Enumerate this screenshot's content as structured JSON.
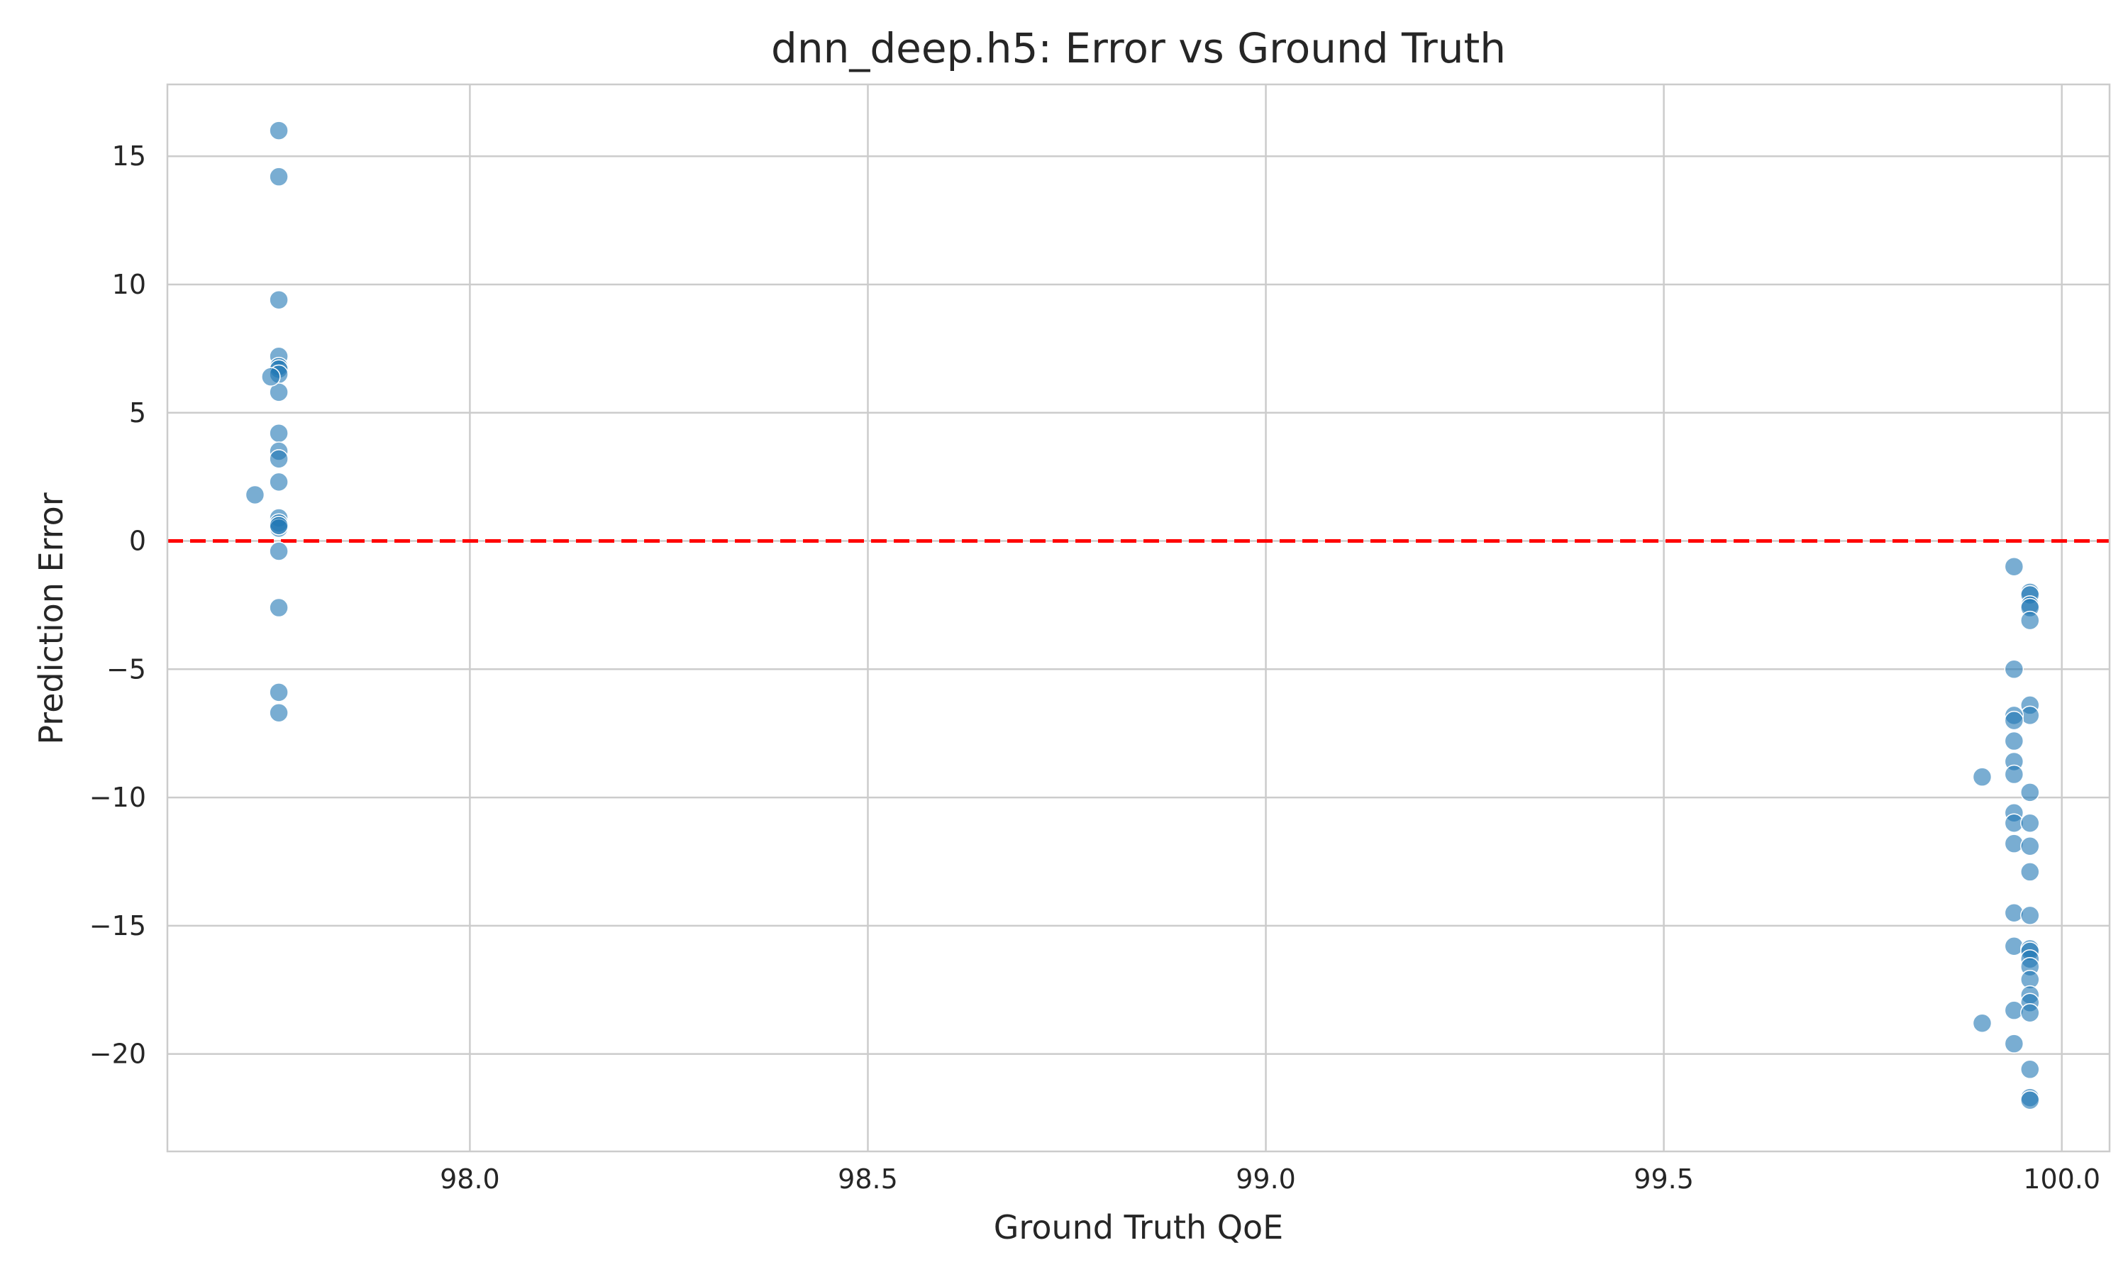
{
  "chart_data": {
    "type": "scatter",
    "title": "dnn_deep.h5: Error vs Ground Truth",
    "xlabel": "Ground Truth QoE",
    "ylabel": "Prediction Error",
    "xlim": [
      97.62,
      100.06
    ],
    "ylim": [
      -23.8,
      17.8
    ],
    "xticks": [
      98.0,
      98.5,
      99.0,
      99.5,
      100.0
    ],
    "xtick_labels": [
      "98.0",
      "98.5",
      "99.0",
      "99.5",
      "100.0"
    ],
    "yticks": [
      15,
      10,
      5,
      0,
      -5,
      -10,
      -15,
      -20
    ],
    "ytick_labels": [
      "15",
      "10",
      "5",
      "0",
      "−5",
      "−10",
      "−15",
      "−20"
    ],
    "grid": true,
    "reference_line": {
      "y": 0,
      "color": "#ff0000",
      "style": "dashed"
    },
    "point_color": "#1f77b4",
    "series": [
      {
        "x": [
          97.76,
          97.76,
          97.76,
          97.76,
          97.76,
          97.76,
          97.76,
          97.76,
          97.75,
          97.76,
          97.76,
          97.76,
          97.76,
          97.76,
          97.73,
          97.76,
          97.76,
          97.76,
          97.76,
          97.76,
          97.76,
          97.76,
          99.94,
          99.96,
          99.96,
          99.96,
          99.96,
          99.96,
          99.94,
          99.96,
          99.96,
          99.94,
          99.94,
          99.94,
          99.94,
          99.94,
          99.9,
          99.96,
          99.94,
          99.94,
          99.96,
          99.94,
          99.96,
          99.96,
          99.94,
          99.96,
          99.94,
          99.96,
          99.96,
          99.96,
          99.96,
          99.96,
          99.96,
          99.96,
          99.94,
          99.96,
          99.9,
          99.94,
          99.96,
          99.96,
          99.96
        ],
        "y": [
          16.0,
          14.2,
          9.4,
          7.2,
          6.8,
          6.7,
          6.5,
          5.8,
          6.4,
          4.2,
          3.5,
          3.2,
          2.3,
          0.9,
          1.8,
          0.7,
          0.5,
          -0.4,
          -2.6,
          -5.9,
          -6.7,
          0.6,
          -1.0,
          -2.0,
          -2.1,
          -2.5,
          -2.6,
          -3.1,
          -5.0,
          -6.4,
          -6.8,
          -6.8,
          -7.0,
          -7.8,
          -8.6,
          -9.1,
          -9.2,
          -9.8,
          -10.6,
          -11.0,
          -11.0,
          -11.8,
          -11.9,
          -12.9,
          -14.5,
          -14.6,
          -15.8,
          -15.9,
          -16.0,
          -16.3,
          -16.6,
          -17.1,
          -17.7,
          -18.0,
          -18.3,
          -18.4,
          -18.8,
          -19.6,
          -20.6,
          -21.7,
          -21.8
        ]
      }
    ]
  }
}
